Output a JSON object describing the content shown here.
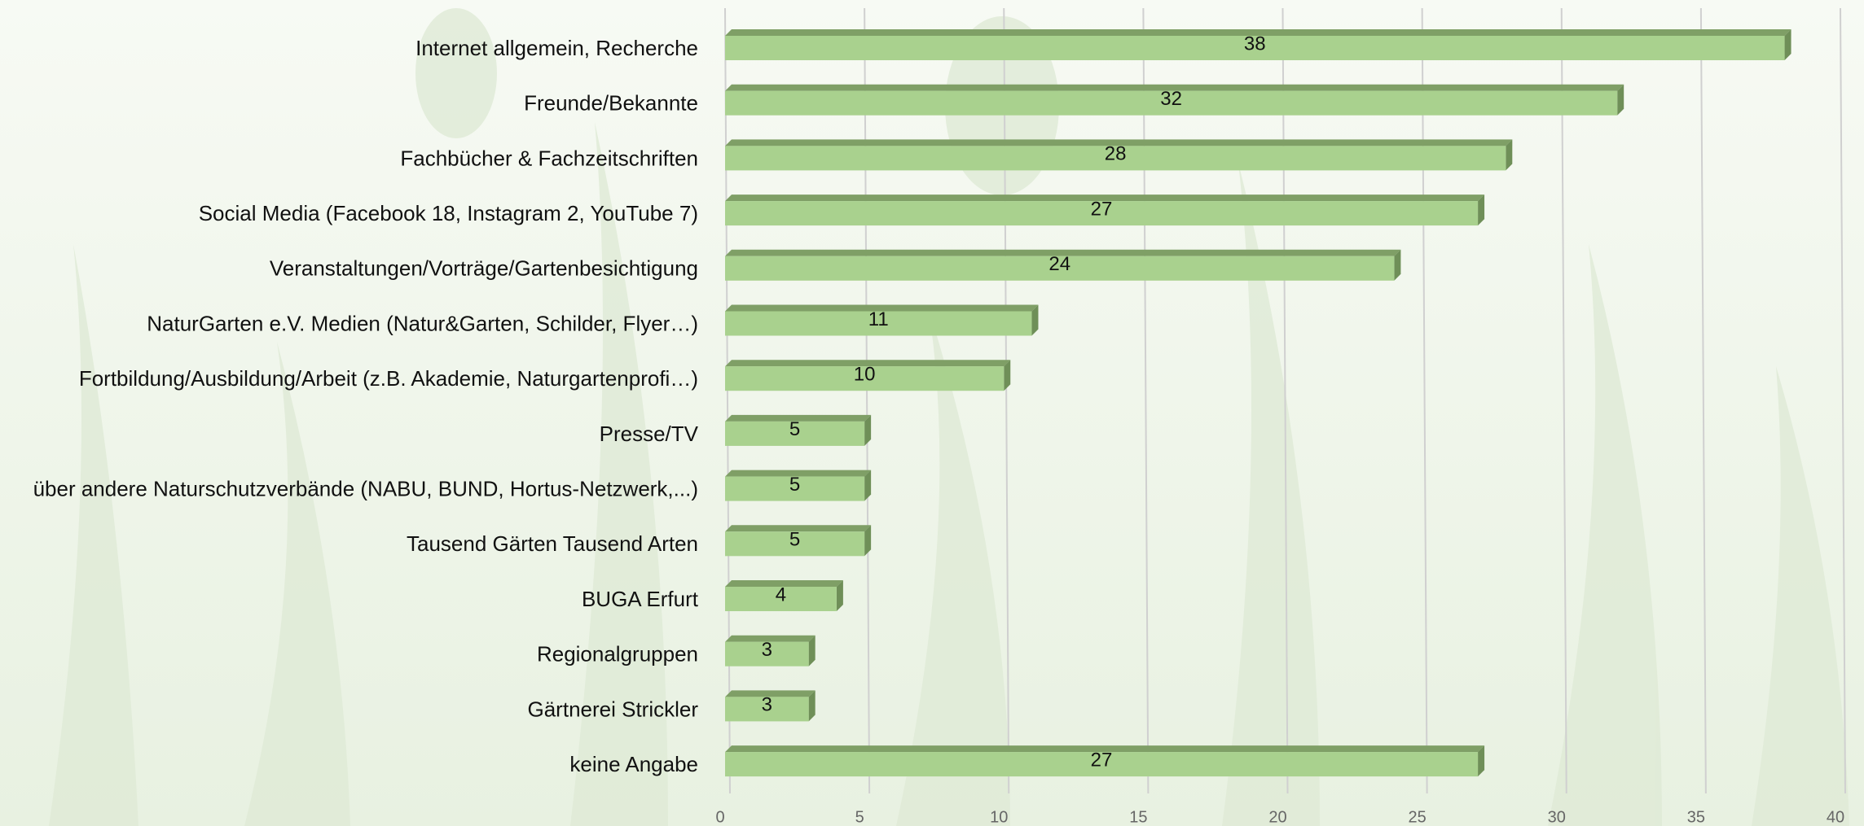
{
  "chart_data": {
    "type": "hbar",
    "categories": [
      "Internet allgemein, Recherche",
      "Freunde/Bekannte",
      "Fachbücher & Fachzeitschriften",
      "Social Media (Facebook 18, Instagram 2, YouTube 7)",
      "Veranstaltungen/Vorträge/Gartenbesichtigung",
      "NaturGarten e.V. Medien (Natur&Garten, Schilder, Flyer…)",
      "Fortbildung/Ausbildung/Arbeit (z.B. Akademie, Naturgartenprofi…)",
      "Presse/TV",
      "über andere Naturschutzverbände (NABU, BUND, Hortus-Netzwerk,...)",
      "Tausend Gärten Tausend Arten",
      "BUGA Erfurt",
      "Regionalgruppen",
      "Gärtnerei Strickler",
      "keine Angabe"
    ],
    "values": [
      38,
      32,
      28,
      27,
      24,
      11,
      10,
      5,
      5,
      5,
      4,
      3,
      3,
      27
    ],
    "color": "#a9d18e",
    "xlim": [
      0,
      40
    ],
    "xticks": [
      0,
      5,
      10,
      15,
      20,
      25,
      30,
      35,
      40
    ],
    "grid": true
  }
}
